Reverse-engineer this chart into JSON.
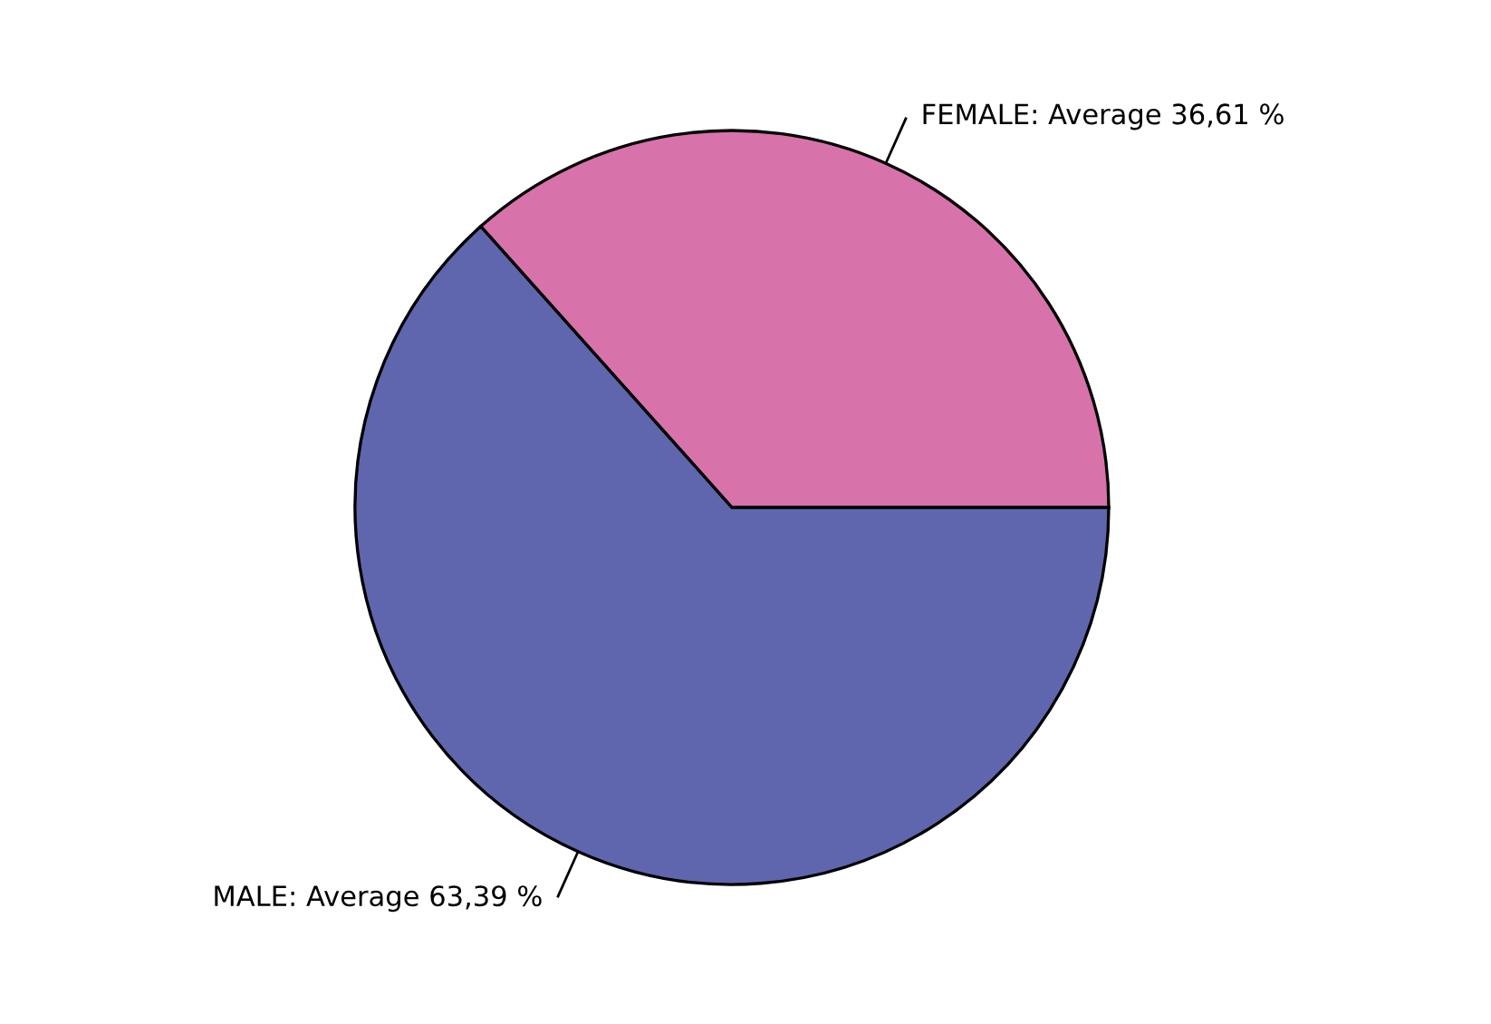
{
  "chart_data": {
    "type": "pie",
    "categories": [
      "FEMALE",
      "MALE"
    ],
    "values": [
      36.61,
      63.39
    ],
    "value_labels": [
      "Average 36,61 %",
      "Average 63,39 %"
    ],
    "colors": [
      "#d872aa",
      "#5f66ae"
    ]
  }
}
